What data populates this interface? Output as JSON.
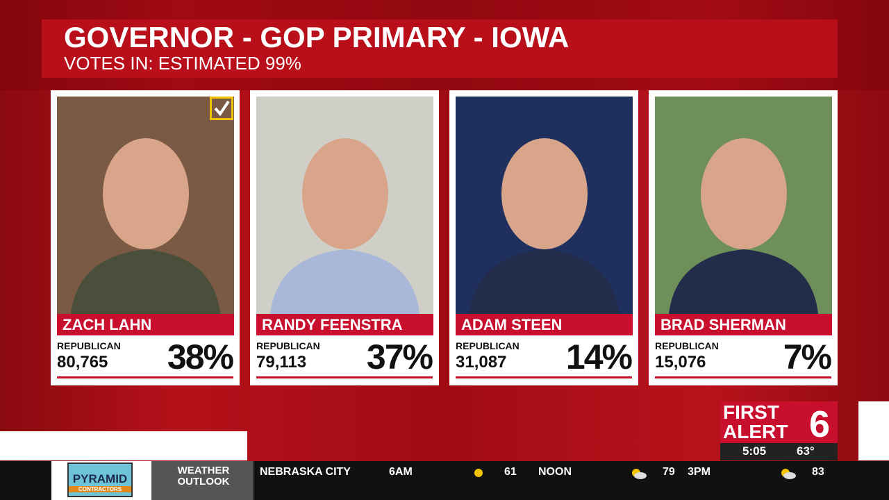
{
  "header": {
    "title": "GOVERNOR - GOP PRIMARY - IOWA",
    "subtitle": "VOTES IN: ESTIMATED 99%"
  },
  "candidates": [
    {
      "name": "ZACH LAHN",
      "party": "REPUBLICAN",
      "votes": "80,765",
      "percent": "38%",
      "winner": true
    },
    {
      "name": "RANDY FEENSTRA",
      "party": "REPUBLICAN",
      "votes": "79,113",
      "percent": "37%",
      "winner": false
    },
    {
      "name": "ADAM STEEN",
      "party": "REPUBLICAN",
      "votes": "31,087",
      "percent": "14%",
      "winner": false
    },
    {
      "name": "BRAD SHERMAN",
      "party": "REPUBLICAN",
      "votes": "15,076",
      "percent": "7%",
      "winner": false
    }
  ],
  "logo": {
    "line1": "FIRST",
    "line2": "ALERT",
    "number": "6",
    "time": "5:05",
    "temp": "63°"
  },
  "ticker": {
    "sponsor": "PYRAMID",
    "sponsor_sub": "CONTRACTORS",
    "label": "WEATHER OUTLOOK",
    "location": "NEBRASKA CITY",
    "forecast": [
      {
        "time": "6AM",
        "temp": "61"
      },
      {
        "time": "NOON",
        "temp": "79"
      },
      {
        "time": "3PM",
        "temp": "83"
      }
    ]
  }
}
